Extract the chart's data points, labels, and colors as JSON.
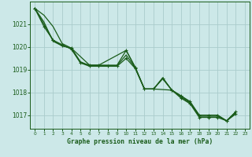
{
  "background_color": "#cce8e8",
  "grid_color": "#aacccc",
  "line_color": "#1a5c1a",
  "marker_color": "#1a5c1a",
  "xlabel": "Graphe pression niveau de la mer (hPa)",
  "xlabel_color": "#1a5c1a",
  "tick_color": "#1a5c1a",
  "spine_color": "#1a5c1a",
  "ylim": [
    1016.4,
    1022.0
  ],
  "xlim": [
    -0.5,
    23.5
  ],
  "yticks": [
    1017,
    1018,
    1019,
    1020,
    1021
  ],
  "xticks": [
    0,
    1,
    2,
    3,
    4,
    5,
    6,
    7,
    8,
    9,
    10,
    11,
    12,
    13,
    14,
    15,
    16,
    17,
    18,
    19,
    20,
    21,
    22,
    23
  ],
  "series": [
    {
      "x": [
        0,
        1,
        2,
        3,
        4,
        5,
        6,
        7,
        8,
        9,
        10,
        11,
        12,
        13,
        14,
        15,
        16,
        17,
        18,
        19,
        20,
        21,
        22
      ],
      "y": [
        1021.7,
        1021.4,
        1020.9,
        1020.15,
        1019.95,
        1019.3,
        1019.2,
        1019.2,
        1019.2,
        1019.2,
        1019.85,
        1019.1,
        1018.15,
        1018.15,
        1018.65,
        1018.1,
        1017.85,
        1017.55,
        1017.0,
        1017.0,
        1017.0,
        1016.75,
        1017.15
      ],
      "marker": false,
      "lw": 0.9
    },
    {
      "x": [
        0,
        1,
        2,
        3,
        4,
        5,
        6,
        7,
        8,
        9,
        10,
        11,
        12,
        13,
        14,
        15,
        16,
        17,
        18,
        19,
        20,
        21,
        22
      ],
      "y": [
        1021.7,
        1020.9,
        1020.3,
        1020.1,
        1019.9,
        1019.3,
        1019.15,
        1019.15,
        1019.15,
        1019.15,
        1019.5,
        1019.05,
        1018.15,
        1018.15,
        1018.6,
        1018.1,
        1017.75,
        1017.5,
        1016.9,
        1016.9,
        1016.9,
        1016.75,
        1017.05
      ],
      "marker": true,
      "lw": 0.9
    },
    {
      "x": [
        0,
        2,
        3,
        4,
        6,
        7,
        10,
        11,
        12,
        13,
        15,
        16,
        17,
        18,
        19,
        20,
        21,
        22
      ],
      "y": [
        1021.7,
        1020.3,
        1020.05,
        1019.95,
        1019.2,
        1019.2,
        1019.85,
        1019.1,
        1018.15,
        1018.15,
        1018.1,
        1017.85,
        1017.6,
        1017.0,
        1017.0,
        1017.0,
        1016.75,
        1017.15
      ],
      "marker": true,
      "lw": 0.9
    },
    {
      "x": [
        0,
        1,
        2,
        3,
        4,
        5,
        6,
        7,
        8,
        9,
        10,
        11,
        12,
        13,
        14,
        15,
        16,
        17,
        18,
        19,
        20,
        21,
        22
      ],
      "y": [
        1021.7,
        1021.1,
        1020.25,
        1020.05,
        1019.95,
        1019.35,
        1019.18,
        1019.18,
        1019.18,
        1019.18,
        1019.65,
        1019.07,
        1018.15,
        1018.15,
        1018.62,
        1018.1,
        1017.8,
        1017.53,
        1016.95,
        1016.95,
        1016.95,
        1016.75,
        1017.1
      ],
      "marker": false,
      "lw": 0.9
    }
  ]
}
